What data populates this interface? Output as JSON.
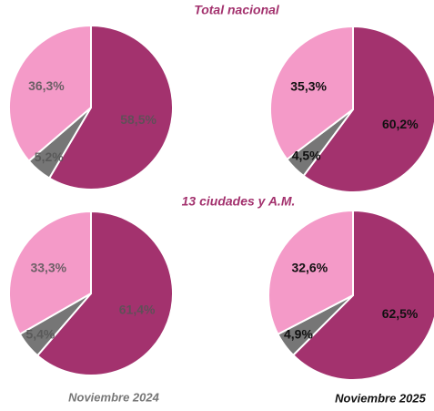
{
  "sections": [
    "Total nacional",
    "13 ciudades y A.M."
  ],
  "periods": [
    "Noviembre 2024",
    "Noviembre 2025"
  ],
  "chart_data": [
    {
      "type": "pie",
      "values": [
        58.5,
        5.2,
        36.3
      ],
      "value_labels": [
        "58,5%",
        "5,2%",
        "36,3%"
      ],
      "colors": [
        "#a3326e",
        "#767676",
        "#f49ac8"
      ]
    },
    {
      "type": "pie",
      "values": [
        60.2,
        4.5,
        35.3
      ],
      "value_labels": [
        "60,2%",
        "4,5%",
        "35,3%"
      ],
      "colors": [
        "#a3326e",
        "#767676",
        "#f49ac8"
      ]
    },
    {
      "type": "pie",
      "values": [
        61.4,
        5.4,
        33.3
      ],
      "value_labels": [
        "61,4%",
        "5,4%",
        "33,3%"
      ],
      "colors": [
        "#a3326e",
        "#767676",
        "#f49ac8"
      ]
    },
    {
      "type": "pie",
      "values": [
        62.5,
        4.9,
        32.6
      ],
      "value_labels": [
        "62,5%",
        "4,9%",
        "32,6%"
      ],
      "colors": [
        "#a3326e",
        "#767676",
        "#f49ac8"
      ]
    }
  ]
}
